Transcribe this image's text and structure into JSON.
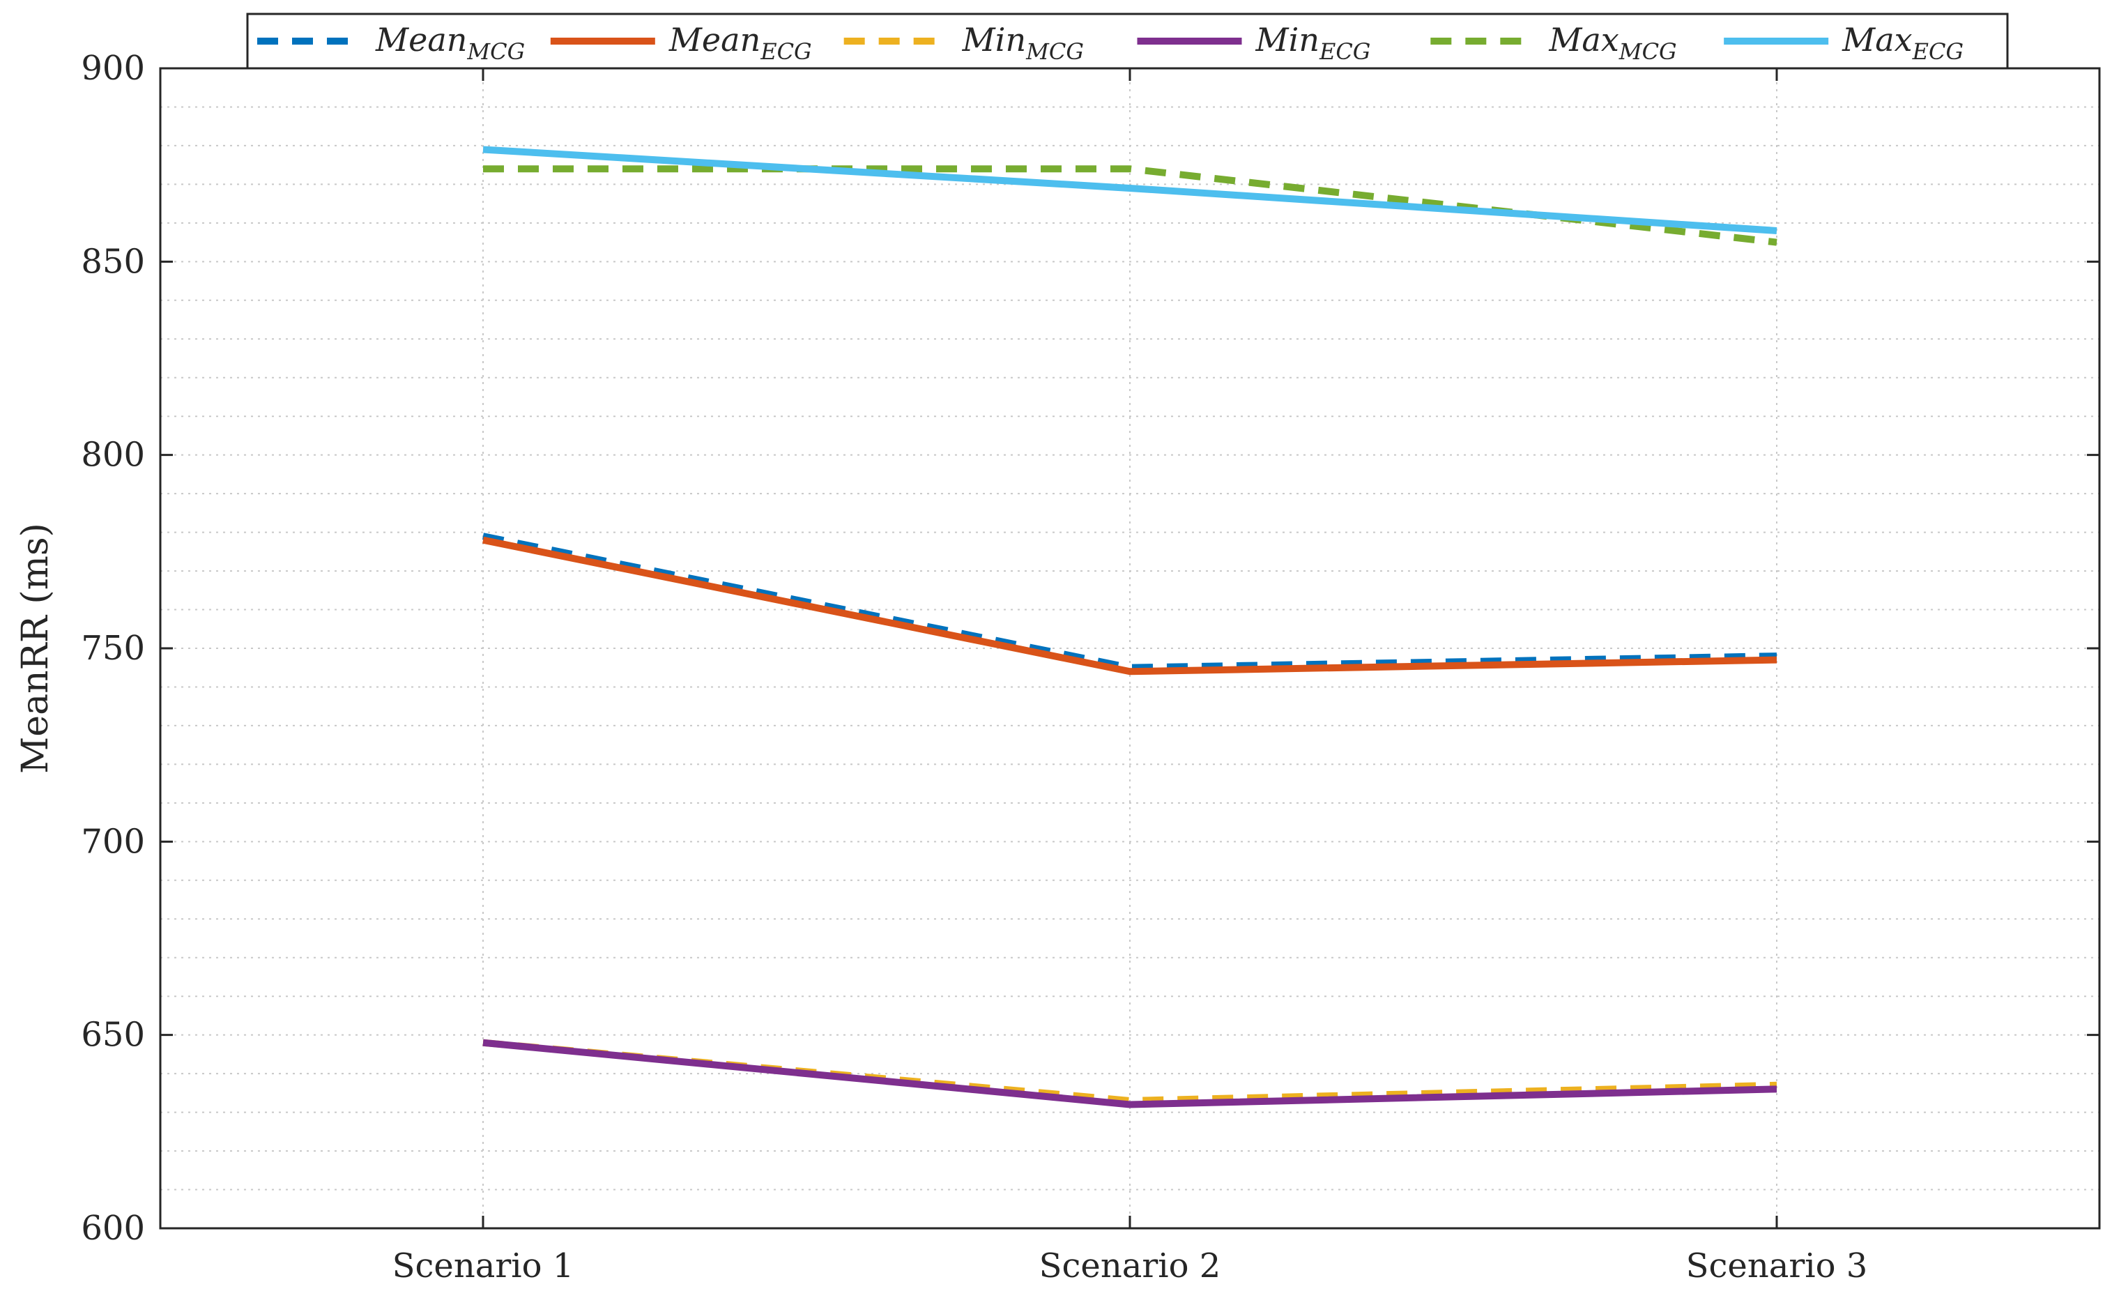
{
  "chart_data": {
    "type": "line",
    "title": "",
    "xlabel": "",
    "ylabel": "MeanRR (ms)",
    "categories": [
      "Scenario 1",
      "Scenario 2",
      "Scenario 3"
    ],
    "ylim": [
      600,
      900
    ],
    "yticks": [
      600,
      650,
      700,
      750,
      800,
      850,
      900
    ],
    "grid": true,
    "legend_position": "top",
    "series": [
      {
        "name": "Mean",
        "subscript": "MCG",
        "values": [
          779,
          745,
          748
        ],
        "color": "#0072BD",
        "style": "dashed"
      },
      {
        "name": "Mean",
        "subscript": "ECG",
        "values": [
          778,
          744,
          747
        ],
        "color": "#D95319",
        "style": "solid"
      },
      {
        "name": "Min",
        "subscript": "MCG",
        "values": [
          648,
          633,
          637
        ],
        "color": "#EDB120",
        "style": "dashed"
      },
      {
        "name": "Min",
        "subscript": "ECG",
        "values": [
          648,
          632,
          636
        ],
        "color": "#7E2F8E",
        "style": "solid"
      },
      {
        "name": "Max",
        "subscript": "MCG",
        "values": [
          874,
          874,
          855
        ],
        "color": "#77AC30",
        "style": "dashed"
      },
      {
        "name": "Max",
        "subscript": "ECG",
        "values": [
          879,
          869,
          858
        ],
        "color": "#4DBEEE",
        "style": "solid"
      }
    ]
  }
}
